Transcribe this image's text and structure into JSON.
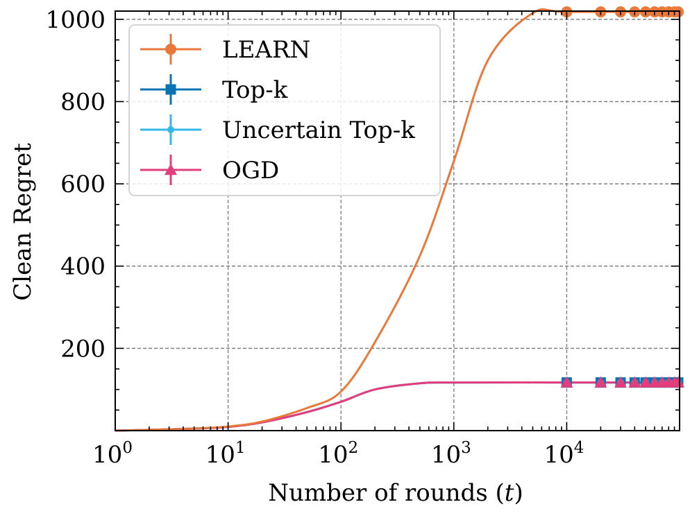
{
  "chart_data": {
    "type": "line",
    "xlabel": "Number of rounds (t)",
    "xlabel_parts": [
      "Number of rounds (",
      "t",
      ")"
    ],
    "ylabel": "Clean Regret",
    "xscale": "log",
    "xlim": [
      1,
      100000
    ],
    "ylim": [
      0,
      1020
    ],
    "x_ticks": [
      {
        "value": 1,
        "base": "10",
        "exp": "0"
      },
      {
        "value": 10,
        "base": "10",
        "exp": "1"
      },
      {
        "value": 100,
        "base": "10",
        "exp": "2"
      },
      {
        "value": 1000,
        "base": "10",
        "exp": "3"
      },
      {
        "value": 10000,
        "base": "10",
        "exp": "4"
      }
    ],
    "y_ticks": [
      200,
      400,
      600,
      800,
      1000
    ],
    "grid": true,
    "legend_position": "top-left",
    "series": [
      {
        "name": "LEARN",
        "color": "#E8793A",
        "marker": "circle",
        "x": [
          1,
          2,
          5,
          10,
          20,
          50,
          100,
          200,
          500,
          1000,
          2000,
          5000,
          10000,
          100000
        ],
        "y": [
          0,
          2,
          5,
          10,
          22,
          55,
          95,
          215,
          425,
          655,
          900,
          1015,
          1018,
          1018
        ],
        "marker_x": [
          10000,
          20000,
          30000,
          40000,
          50000,
          60000,
          70000,
          80000,
          90000,
          100000
        ],
        "marker_y": [
          1018,
          1018,
          1018,
          1018,
          1018,
          1018,
          1018,
          1018,
          1018,
          1018
        ]
      },
      {
        "name": "Top-k",
        "color": "#0C73B2",
        "marker": "square",
        "x": [
          1,
          2,
          5,
          10,
          20,
          50,
          100,
          200,
          500,
          1000,
          10000,
          100000
        ],
        "y": [
          0,
          2,
          5,
          9,
          20,
          45,
          70,
          100,
          115,
          117,
          117,
          117
        ],
        "marker_x": [
          10000,
          20000,
          30000,
          40000,
          50000,
          60000,
          70000,
          80000,
          90000,
          100000
        ],
        "marker_y": [
          117,
          117,
          117,
          117,
          117,
          117,
          117,
          117,
          117,
          117
        ]
      },
      {
        "name": "Uncertain Top-k",
        "color": "#35B8E8",
        "marker": "point",
        "x": [
          1,
          2,
          5,
          10,
          20,
          50,
          100,
          200,
          500,
          1000,
          10000,
          100000
        ],
        "y": [
          0,
          2,
          5,
          9,
          20,
          45,
          70,
          100,
          115,
          117,
          117,
          117
        ],
        "marker_x": [
          10000,
          20000,
          30000,
          40000,
          50000,
          60000,
          70000,
          80000,
          90000,
          100000
        ],
        "marker_y": [
          117,
          117,
          117,
          117,
          117,
          117,
          117,
          117,
          117,
          117
        ]
      },
      {
        "name": "OGD",
        "color": "#E33D7D",
        "marker": "triangle",
        "x": [
          1,
          2,
          5,
          10,
          20,
          50,
          100,
          200,
          500,
          1000,
          10000,
          100000
        ],
        "y": [
          0,
          2,
          5,
          9,
          20,
          45,
          70,
          100,
          115,
          117,
          117,
          117
        ],
        "marker_x": [
          10000,
          20000,
          30000,
          40000,
          50000,
          60000,
          70000,
          80000,
          90000,
          100000
        ],
        "marker_y": [
          117,
          117,
          117,
          117,
          117,
          117,
          117,
          117,
          117,
          117
        ]
      }
    ]
  }
}
